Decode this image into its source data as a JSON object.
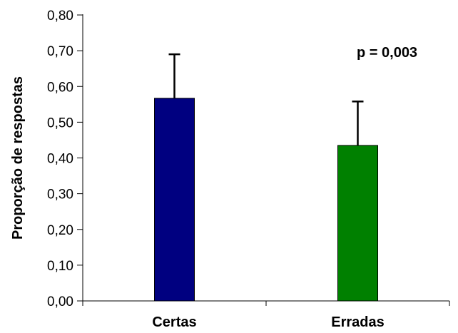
{
  "chart_data": {
    "type": "bar",
    "categories": [
      "Certas",
      "Erradas"
    ],
    "values": [
      0.567,
      0.435
    ],
    "error_upper": [
      0.69,
      0.558
    ],
    "colors": [
      "#000080",
      "#008000"
    ],
    "ylabel": "Proporção de respostas",
    "ylim": [
      0,
      0.8
    ],
    "yticks": [
      "0,00",
      "0,10",
      "0,20",
      "0,30",
      "0,40",
      "0,50",
      "0,60",
      "0,70",
      "0,80"
    ],
    "ytick_values": [
      0,
      0.1,
      0.2,
      0.3,
      0.4,
      0.5,
      0.6,
      0.7,
      0.8
    ],
    "annotation": "p = 0,003",
    "grid": false,
    "legend": "none"
  }
}
